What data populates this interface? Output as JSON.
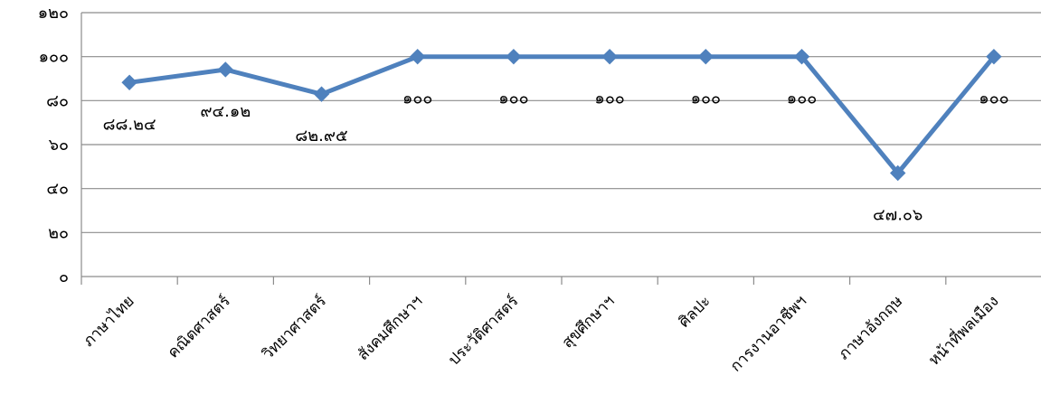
{
  "chart_data": {
    "type": "line",
    "categories": [
      "ภาษาไทย",
      "คณิตศาสตร์",
      "วิทยาศาสตร์",
      "สังคมศึกษาฯ",
      "ประวัติศาสตร์",
      "สุขศึกษาฯ",
      "ศิลปะ",
      "การงานอาชีพฯ",
      "ภาษาอังกฤษ",
      "หน้าที่พลเมือง"
    ],
    "series": [
      {
        "values": [
          88.24,
          94.12,
          82.95,
          100,
          100,
          100,
          100,
          100,
          47.06,
          100
        ],
        "labels": [
          "๘๘.๒๔",
          "๙๔.๑๒",
          "๘๒.๙๕",
          "๑๐๐",
          "๑๐๐",
          "๑๐๐",
          "๑๐๐",
          "๑๐๐",
          "๔๗.๐๖",
          "๑๐๐"
        ],
        "color": "#4f81bd"
      }
    ],
    "ylim": [
      0,
      120
    ],
    "yticks": [
      0,
      20,
      40,
      60,
      80,
      100,
      120
    ],
    "ytick_labels": [
      "๐",
      "๒๐",
      "๔๐",
      "๖๐",
      "๘๐",
      "๑๐๐",
      "๑๒๐"
    ],
    "grid": true,
    "title": "",
    "xlabel": "",
    "ylabel": ""
  }
}
